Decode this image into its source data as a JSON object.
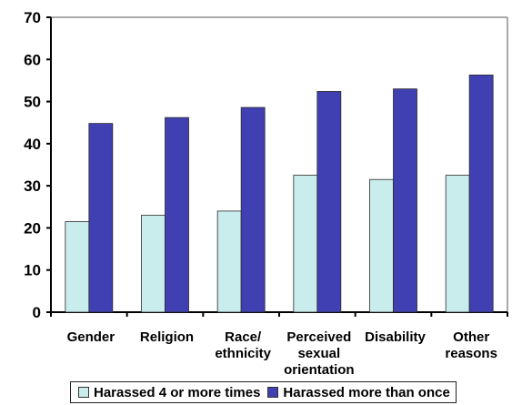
{
  "chart_data": {
    "type": "bar",
    "title": "",
    "xlabel": "",
    "ylabel": "",
    "ylim": [
      0,
      70
    ],
    "yticks": [
      0,
      10,
      20,
      30,
      40,
      50,
      60,
      70
    ],
    "grid": false,
    "legend_position": "bottom",
    "categories": [
      [
        "Gender"
      ],
      [
        "Religion"
      ],
      [
        "Race/",
        "ethnicity"
      ],
      [
        "Perceived",
        "sexual",
        "orientation"
      ],
      [
        "Disability"
      ],
      [
        "Other",
        "reasons"
      ]
    ],
    "series": [
      {
        "name": "Harassed 4 or more times",
        "color": "#c9ecec",
        "values": [
          21.5,
          23,
          24,
          32.5,
          31.5,
          32.5
        ]
      },
      {
        "name": "Harassed more than once",
        "color": "#4040b3",
        "values": [
          44.8,
          46.2,
          48.6,
          52.4,
          53,
          56.3
        ]
      }
    ]
  }
}
